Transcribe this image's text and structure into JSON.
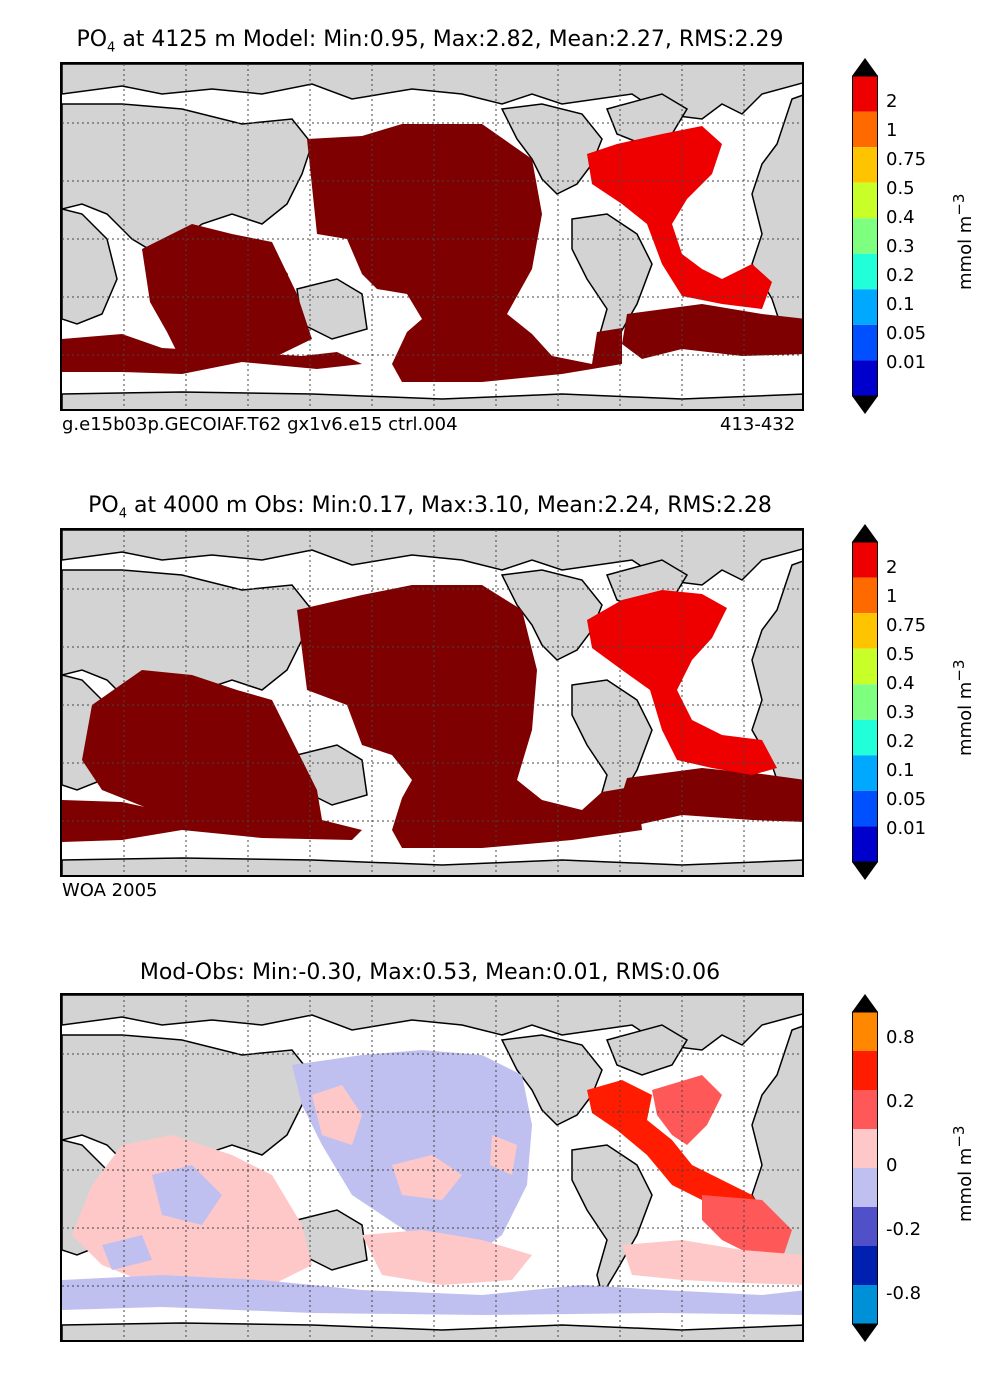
{
  "panels": [
    {
      "id": "model",
      "title_prefix": "PO",
      "title_sub": "4",
      "title_rest": " at 4125 m Model: Min:0.95, Max:2.82, Mean:2.27, RMS:2.29",
      "caption_left": "g.e15b03p.GECOIAF.T62 gx1v6.e15 ctrl.004",
      "caption_right": "413-432",
      "colorbar": {
        "colors": [
          "#00007f",
          "#0000cc",
          "#0050ff",
          "#00a8ff",
          "#20ffd8",
          "#7fff7f",
          "#c8ff28",
          "#ffc400",
          "#ff6a00",
          "#ee0000",
          "#7f0000"
        ],
        "ticks": [
          "2",
          "1",
          "0.75",
          "0.5",
          "0.4",
          "0.3",
          "0.2",
          "0.1",
          "0.05",
          "0.01"
        ],
        "unit": "mmol m",
        "unit_sup": "−3"
      }
    },
    {
      "id": "obs",
      "title_prefix": "PO",
      "title_sub": "4",
      "title_rest": " at 4000 m Obs: Min:0.17, Max:3.10, Mean:2.24, RMS:2.28",
      "caption_left": "WOA 2005",
      "caption_right": "",
      "colorbar": {
        "colors": [
          "#00007f",
          "#0000cc",
          "#0050ff",
          "#00a8ff",
          "#20ffd8",
          "#7fff7f",
          "#c8ff28",
          "#ffc400",
          "#ff6a00",
          "#ee0000",
          "#7f0000"
        ],
        "ticks": [
          "2",
          "1",
          "0.75",
          "0.5",
          "0.4",
          "0.3",
          "0.2",
          "0.1",
          "0.05",
          "0.01"
        ],
        "unit": "mmol m",
        "unit_sup": "−3"
      }
    },
    {
      "id": "diff",
      "title_prefix": "",
      "title_sub": "",
      "title_rest": "Mod-Obs: Min:-0.30, Max:0.53, Mean:0.01, RMS:0.06",
      "caption_left": "",
      "caption_right": "",
      "colorbar": {
        "colors": [
          "#00ffff",
          "#0090d8",
          "#0020b0",
          "#5050c8",
          "#c0c0f0",
          "#ffc8c8",
          "#ff5858",
          "#ff1c00",
          "#ff8800",
          "#ffff00"
        ],
        "ticks": [
          "0.8",
          "0.2",
          "0",
          "-0.2",
          "-0.8"
        ],
        "unit": "mmol m",
        "unit_sup": "−3"
      }
    }
  ],
  "map_colors": {
    "land": "#d3d3d3",
    "ocean_blank": "#ffffff",
    "pacific_indian_fill": "#7f0000",
    "atlantic_fill": "#ee0000",
    "diff_positive": "#ffc8c8",
    "diff_negative": "#c0c0f0",
    "diff_strong_positive": "#ff1c00"
  }
}
